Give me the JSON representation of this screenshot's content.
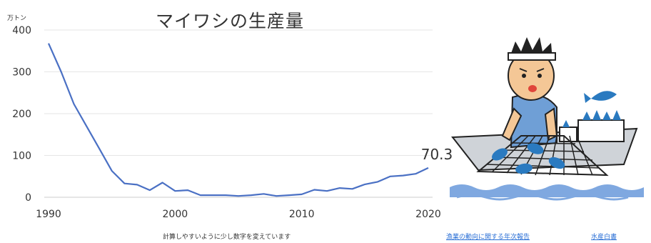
{
  "chart_data": {
    "type": "line",
    "title": "マイワシの生産量",
    "unit_label": "万トン",
    "xlabel": "",
    "ylabel": "",
    "xlim": [
      1990,
      2020
    ],
    "ylim": [
      0,
      400
    ],
    "yticks": [
      0,
      100,
      200,
      300,
      400
    ],
    "xticks": [
      1990,
      2000,
      2010,
      2020
    ],
    "grid": true,
    "series": [
      {
        "color": "#4a70c4",
        "x": [
          1990,
          1991,
          1992,
          1993,
          1994,
          1995,
          1996,
          1997,
          1998,
          1999,
          2000,
          2001,
          2002,
          2003,
          2004,
          2005,
          2006,
          2007,
          2008,
          2009,
          2010,
          2011,
          2012,
          2013,
          2014,
          2015,
          2016,
          2017,
          2018,
          2019,
          2020
        ],
        "y": [
          368,
          300,
          223,
          170,
          117,
          63,
          33,
          30,
          17,
          35,
          15,
          17,
          5,
          5,
          5,
          3,
          5,
          8,
          3,
          5,
          7,
          18,
          15,
          22,
          20,
          31,
          37,
          50,
          52,
          56,
          70.3
        ]
      }
    ],
    "annotation": {
      "text": "70.3"
    }
  },
  "footnote": "計算しやすいように少し数字を変えています",
  "sources": [
    {
      "label": "漁業の動向に関する年次報告"
    },
    {
      "label": "水産白書"
    }
  ],
  "illustration": {
    "name": "fisherman-with-net-illustration"
  }
}
